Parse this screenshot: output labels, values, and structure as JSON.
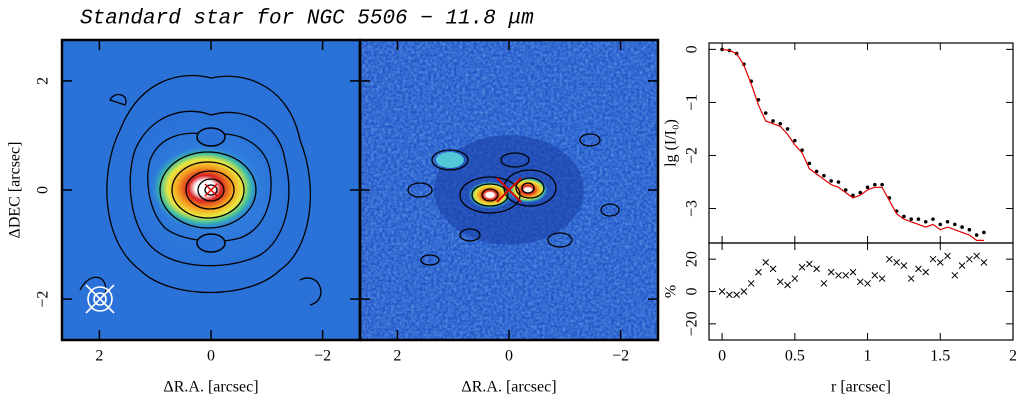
{
  "chart_data": [
    {
      "type": "image",
      "title": "Standard star for NGC 5506 − 11.8 μm",
      "xlabel": "ΔR.A. [arcsec]",
      "ylabel": "ΔDEC [arcsec]",
      "xlim": [
        2.67,
        -2.67
      ],
      "ylim": [
        -2.75,
        2.75
      ],
      "xticks": [
        2,
        0,
        {
          "value": -2,
          "label": "−2"
        }
      ],
      "yticks": [
        {
          "value": -2,
          "label": "−2"
        },
        0,
        2
      ]
    },
    {
      "type": "image",
      "xlabel": "ΔR.A. [arcsec]",
      "xlim": [
        2.67,
        -2.67
      ],
      "ylim": [
        -2.75,
        2.75
      ],
      "xticks": [
        2,
        0,
        {
          "value": -2,
          "label": "−2"
        }
      ]
    },
    {
      "type": "scatter",
      "ylabel": "lg (I/I₀)",
      "x": [
        0,
        0.05,
        0.1,
        0.15,
        0.2,
        0.25,
        0.3,
        0.35,
        0.4,
        0.45,
        0.5,
        0.55,
        0.6,
        0.65,
        0.7,
        0.75,
        0.8,
        0.85,
        0.9,
        0.95,
        1.0,
        1.05,
        1.1,
        1.15,
        1.2,
        1.25,
        1.3,
        1.35,
        1.4,
        1.45,
        1.5,
        1.55,
        1.6,
        1.65,
        1.7,
        1.75,
        1.8
      ],
      "series": [
        {
          "color": "#000000",
          "values": [
            0,
            -0.02,
            -0.08,
            -0.28,
            -0.6,
            -0.95,
            -1.2,
            -1.35,
            -1.4,
            -1.5,
            -1.72,
            -1.9,
            -2.15,
            -2.3,
            -2.38,
            -2.48,
            -2.5,
            -2.65,
            -2.75,
            -2.7,
            -2.6,
            -2.55,
            -2.55,
            -2.8,
            -3.05,
            -3.15,
            -3.2,
            -3.2,
            -3.25,
            -3.2,
            -3.3,
            -3.25,
            -3.3,
            -3.35,
            -3.4,
            -3.5,
            -3.45
          ]
        },
        {
          "color": "#e00000",
          "values": [
            0,
            -0.02,
            -0.08,
            -0.3,
            -0.65,
            -1.05,
            -1.35,
            -1.4,
            -1.45,
            -1.6,
            -1.8,
            -1.95,
            -2.25,
            -2.35,
            -2.45,
            -2.55,
            -2.6,
            -2.7,
            -2.8,
            -2.75,
            -2.65,
            -2.6,
            -2.6,
            -2.85,
            -3.1,
            -3.2,
            -3.25,
            -3.3,
            -3.35,
            -3.3,
            -3.4,
            -3.35,
            -3.4,
            -3.45,
            -3.5,
            -3.6,
            -3.6
          ]
        }
      ],
      "xlim": [
        -0.09,
        2.0
      ],
      "ylim": [
        -3.65,
        0.12
      ],
      "yticks": [
        {
          "value": -3,
          "label": "−3"
        },
        {
          "value": -2,
          "label": "−2"
        },
        {
          "value": -1,
          "label": "−1"
        },
        0
      ]
    },
    {
      "type": "residual",
      "xlabel": "r [arcsec]",
      "ylabel": "%",
      "x": [
        0,
        0.05,
        0.1,
        0.15,
        0.2,
        0.25,
        0.3,
        0.35,
        0.4,
        0.45,
        0.5,
        0.55,
        0.6,
        0.65,
        0.7,
        0.75,
        0.8,
        0.85,
        0.9,
        0.95,
        1.0,
        1.05,
        1.1,
        1.15,
        1.2,
        1.25,
        1.3,
        1.35,
        1.4,
        1.45,
        1.5,
        1.55,
        1.6,
        1.65,
        1.7,
        1.75,
        1.8
      ],
      "values": [
        0,
        -2,
        -2,
        0,
        5,
        12,
        18,
        14,
        6,
        4,
        8,
        15,
        17,
        14,
        5,
        12,
        10,
        10,
        12,
        6,
        5,
        10,
        8,
        20,
        18,
        16,
        8,
        14,
        12,
        20,
        18,
        22,
        10,
        16,
        20,
        22,
        18
      ],
      "color": "#000000",
      "xlim": [
        -0.09,
        2.0
      ],
      "ylim": [
        -30,
        30
      ],
      "xticks": [
        0,
        0.5,
        1,
        1.5,
        2
      ],
      "yticks": [
        {
          "value": -20,
          "label": "−20"
        },
        0,
        20
      ]
    }
  ]
}
